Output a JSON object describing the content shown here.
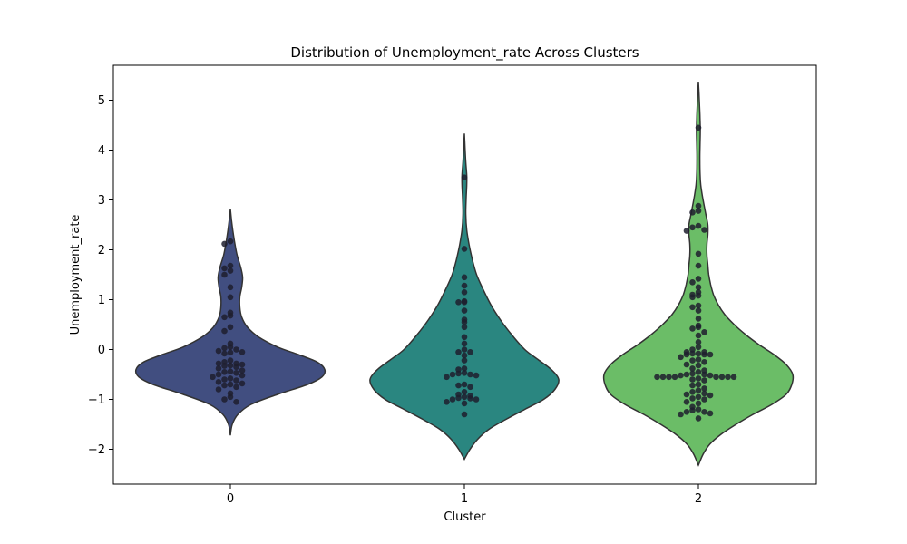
{
  "chart_data": {
    "type": "violin",
    "title": "Distribution of Unemployment_rate Across Clusters",
    "xlabel": "Cluster",
    "ylabel": "Unemployment_rate",
    "categories": [
      "0",
      "1",
      "2"
    ],
    "ylim": [
      -2.7,
      5.7
    ],
    "yticks": [
      -2,
      -1,
      0,
      1,
      2,
      3,
      4,
      5
    ],
    "grid": false,
    "colors": [
      "#414e80",
      "#2a8680",
      "#6bbd67"
    ],
    "edge_color": "#333333",
    "point_color": "#1f1f2e",
    "violins": [
      {
        "profile": [
          [
            -1.72,
            0.0
          ],
          [
            -1.5,
            0.02
          ],
          [
            -1.3,
            0.08
          ],
          [
            -1.1,
            0.22
          ],
          [
            -0.9,
            0.5
          ],
          [
            -0.7,
            0.82
          ],
          [
            -0.55,
            0.97
          ],
          [
            -0.4,
            1.0
          ],
          [
            -0.25,
            0.92
          ],
          [
            -0.1,
            0.72
          ],
          [
            0.05,
            0.5
          ],
          [
            0.25,
            0.3
          ],
          [
            0.45,
            0.18
          ],
          [
            0.65,
            0.12
          ],
          [
            0.85,
            0.1
          ],
          [
            1.05,
            0.1
          ],
          [
            1.25,
            0.12
          ],
          [
            1.45,
            0.13
          ],
          [
            1.65,
            0.11
          ],
          [
            1.9,
            0.07
          ],
          [
            2.15,
            0.045
          ],
          [
            2.4,
            0.025
          ],
          [
            2.6,
            0.012
          ],
          [
            2.82,
            0.0
          ]
        ],
        "points": [
          2.17,
          2.12,
          1.68,
          1.63,
          1.58,
          1.5,
          1.25,
          1.05,
          0.74,
          0.68,
          0.65,
          0.45,
          0.37,
          0.12,
          0.05,
          0.03,
          0.0,
          -0.03,
          -0.05,
          -0.06,
          -0.08,
          -0.22,
          -0.25,
          -0.28,
          -0.28,
          -0.3,
          -0.32,
          -0.33,
          -0.35,
          -0.38,
          -0.42,
          -0.44,
          -0.45,
          -0.47,
          -0.5,
          -0.52,
          -0.55,
          -0.58,
          -0.6,
          -0.62,
          -0.65,
          -0.68,
          -0.7,
          -0.72,
          -0.75,
          -0.8,
          -0.88,
          -0.95,
          -1.0,
          -1.05
        ]
      },
      {
        "profile": [
          [
            -2.2,
            0.0
          ],
          [
            -2.0,
            0.06
          ],
          [
            -1.8,
            0.14
          ],
          [
            -1.6,
            0.26
          ],
          [
            -1.4,
            0.44
          ],
          [
            -1.2,
            0.64
          ],
          [
            -1.0,
            0.84
          ],
          [
            -0.8,
            0.96
          ],
          [
            -0.6,
            1.0
          ],
          [
            -0.4,
            0.92
          ],
          [
            -0.2,
            0.78
          ],
          [
            0.0,
            0.64
          ],
          [
            0.3,
            0.5
          ],
          [
            0.6,
            0.38
          ],
          [
            0.9,
            0.28
          ],
          [
            1.2,
            0.2
          ],
          [
            1.5,
            0.13
          ],
          [
            1.8,
            0.085
          ],
          [
            2.1,
            0.05
          ],
          [
            2.4,
            0.025
          ],
          [
            2.7,
            0.015
          ],
          [
            3.0,
            0.018
          ],
          [
            3.3,
            0.025
          ],
          [
            3.5,
            0.025
          ],
          [
            3.75,
            0.015
          ],
          [
            4.05,
            0.007
          ],
          [
            4.33,
            0.0
          ]
        ],
        "points": [
          3.45,
          2.02,
          1.45,
          1.28,
          1.15,
          0.97,
          0.95,
          0.95,
          0.78,
          0.6,
          0.55,
          0.45,
          0.25,
          0.12,
          0.0,
          -0.05,
          -0.05,
          -0.12,
          -0.22,
          -0.38,
          -0.4,
          -0.47,
          -0.48,
          -0.5,
          -0.5,
          -0.52,
          -0.55,
          -0.7,
          -0.72,
          -0.75,
          -0.85,
          -0.9,
          -0.93,
          -0.95,
          -0.97,
          -0.98,
          -1.0,
          -1.0,
          -1.05,
          -1.08,
          -1.3
        ]
      },
      {
        "profile": [
          [
            -2.32,
            0.0
          ],
          [
            -2.1,
            0.05
          ],
          [
            -1.9,
            0.12
          ],
          [
            -1.7,
            0.24
          ],
          [
            -1.5,
            0.4
          ],
          [
            -1.3,
            0.58
          ],
          [
            -1.1,
            0.78
          ],
          [
            -0.9,
            0.93
          ],
          [
            -0.7,
            0.99
          ],
          [
            -0.5,
            1.0
          ],
          [
            -0.3,
            0.93
          ],
          [
            -0.1,
            0.8
          ],
          [
            0.1,
            0.64
          ],
          [
            0.3,
            0.5
          ],
          [
            0.5,
            0.38
          ],
          [
            0.7,
            0.28
          ],
          [
            0.9,
            0.21
          ],
          [
            1.1,
            0.16
          ],
          [
            1.3,
            0.13
          ],
          [
            1.5,
            0.11
          ],
          [
            1.7,
            0.1
          ],
          [
            1.9,
            0.09
          ],
          [
            2.1,
            0.09
          ],
          [
            2.3,
            0.1
          ],
          [
            2.5,
            0.1
          ],
          [
            2.7,
            0.08
          ],
          [
            2.9,
            0.06
          ],
          [
            3.1,
            0.04
          ],
          [
            3.3,
            0.025
          ],
          [
            3.5,
            0.018
          ],
          [
            3.8,
            0.015
          ],
          [
            4.1,
            0.017
          ],
          [
            4.4,
            0.02
          ],
          [
            4.7,
            0.016
          ],
          [
            5.0,
            0.01
          ],
          [
            5.2,
            0.005
          ],
          [
            5.37,
            0.0
          ]
        ],
        "points": [
          4.45,
          2.88,
          2.78,
          2.75,
          2.48,
          2.45,
          2.4,
          2.38,
          1.92,
          1.68,
          1.42,
          1.35,
          1.25,
          1.15,
          1.1,
          1.08,
          1.05,
          0.88,
          0.85,
          0.78,
          0.62,
          0.48,
          0.45,
          0.42,
          0.35,
          0.28,
          0.15,
          0.05,
          0.0,
          -0.05,
          -0.05,
          -0.08,
          -0.08,
          -0.1,
          -0.1,
          -0.1,
          -0.15,
          -0.2,
          -0.22,
          -0.25,
          -0.3,
          -0.32,
          -0.38,
          -0.42,
          -0.45,
          -0.48,
          -0.5,
          -0.5,
          -0.52,
          -0.52,
          -0.55,
          -0.55,
          -0.55,
          -0.55,
          -0.55,
          -0.55,
          -0.55,
          -0.55,
          -0.58,
          -0.6,
          -0.62,
          -0.7,
          -0.72,
          -0.78,
          -0.82,
          -0.85,
          -0.88,
          -0.9,
          -0.92,
          -0.95,
          -0.98,
          -1.0,
          -1.05,
          -1.08,
          -1.15,
          -1.2,
          -1.22,
          -1.25,
          -1.25,
          -1.28,
          -1.3,
          -1.38
        ]
      }
    ]
  }
}
